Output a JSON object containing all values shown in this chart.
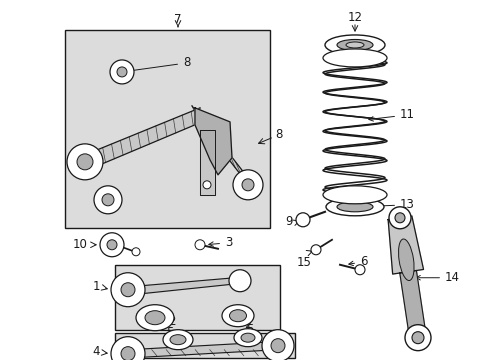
{
  "bg_color": "#ffffff",
  "line_color": "#1a1a1a",
  "box_fill": "#dcdcdc",
  "white": "#ffffff",
  "gray1": "#b0b0b0",
  "gray2": "#c8c8c8",
  "figsize": [
    4.89,
    3.6
  ],
  "dpi": 100,
  "font_size": 8.5
}
